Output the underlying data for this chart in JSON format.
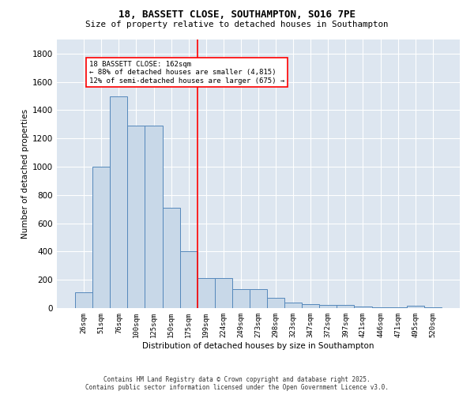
{
  "title_line1": "18, BASSETT CLOSE, SOUTHAMPTON, SO16 7PE",
  "title_line2": "Size of property relative to detached houses in Southampton",
  "xlabel": "Distribution of detached houses by size in Southampton",
  "ylabel": "Number of detached properties",
  "categories": [
    "26sqm",
    "51sqm",
    "76sqm",
    "100sqm",
    "125sqm",
    "150sqm",
    "175sqm",
    "199sqm",
    "224sqm",
    "249sqm",
    "273sqm",
    "298sqm",
    "323sqm",
    "347sqm",
    "372sqm",
    "397sqm",
    "421sqm",
    "446sqm",
    "471sqm",
    "495sqm",
    "520sqm"
  ],
  "values": [
    110,
    1000,
    1500,
    1290,
    1290,
    710,
    400,
    215,
    215,
    135,
    135,
    70,
    40,
    30,
    25,
    20,
    12,
    5,
    5,
    18,
    5
  ],
  "bar_color": "#c8d8e8",
  "bar_edge_color": "#5588bb",
  "vline_x": 6.5,
  "vline_color": "red",
  "annotation_text": "18 BASSETT CLOSE: 162sqm\n← 88% of detached houses are smaller (4,815)\n12% of semi-detached houses are larger (675) →",
  "annotation_box_color": "white",
  "annotation_box_edge": "red",
  "ylim": [
    0,
    1900
  ],
  "yticks": [
    0,
    200,
    400,
    600,
    800,
    1000,
    1200,
    1400,
    1600,
    1800
  ],
  "bg_color": "#dde6f0",
  "grid_color": "white",
  "footer_line1": "Contains HM Land Registry data © Crown copyright and database right 2025.",
  "footer_line2": "Contains public sector information licensed under the Open Government Licence v3.0."
}
